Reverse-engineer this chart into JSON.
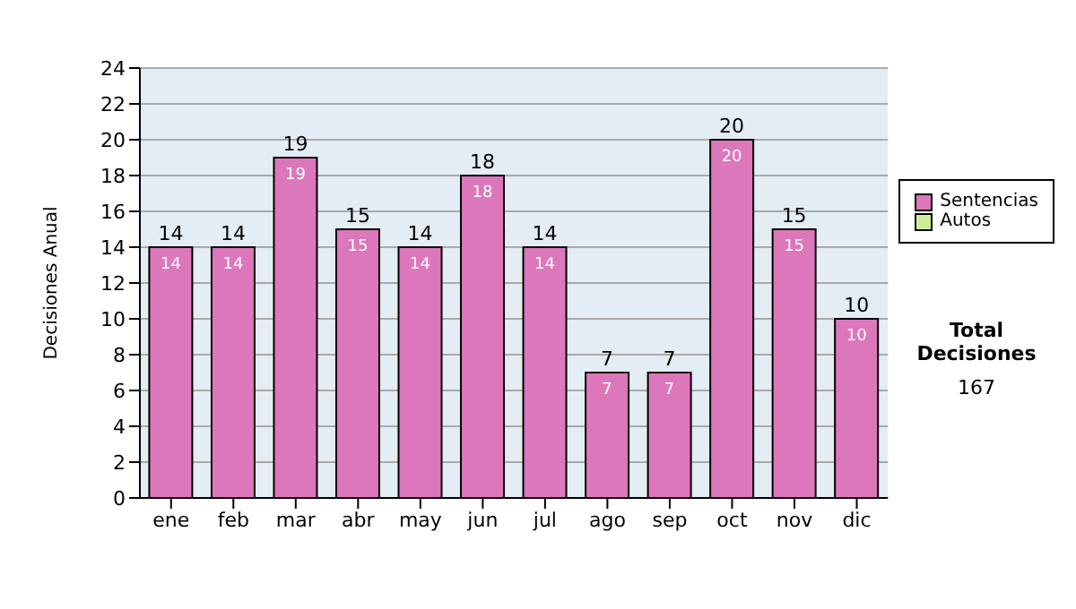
{
  "chart_data": {
    "type": "bar",
    "ylabel": "Decisiones Anual",
    "categories": [
      "ene",
      "feb",
      "mar",
      "abr",
      "may",
      "jun",
      "jul",
      "ago",
      "sep",
      "oct",
      "nov",
      "dic"
    ],
    "series": [
      {
        "name": "Sentencias",
        "color": "#dd77bb",
        "values": [
          14,
          14,
          19,
          15,
          14,
          18,
          14,
          7,
          7,
          20,
          15,
          10
        ],
        "value_labels": [
          "14",
          "14",
          "19",
          "15",
          "14",
          "18",
          "14",
          "7",
          "7",
          "20",
          "15",
          "10"
        ]
      },
      {
        "name": "Autos",
        "color": "#ccee99",
        "values": [
          0,
          0,
          0,
          0,
          0,
          0,
          0,
          0,
          0,
          0,
          0,
          0
        ]
      }
    ],
    "stacked": true,
    "totals": [
      "14",
      "14",
      "19",
      "15",
      "14",
      "18",
      "14",
      "7",
      "7",
      "20",
      "15",
      "10"
    ],
    "ylim": [
      0,
      24
    ],
    "yticks": [
      0,
      2,
      4,
      6,
      8,
      10,
      12,
      14,
      16,
      18,
      20,
      22,
      24
    ],
    "grid": "y",
    "legend": "right",
    "annotations": [
      "Total Decisiones",
      "167"
    ]
  }
}
